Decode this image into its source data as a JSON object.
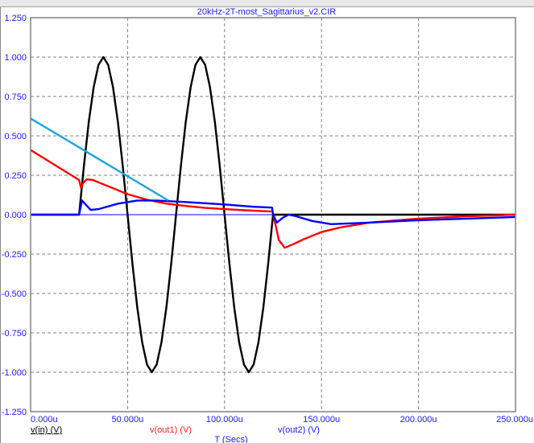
{
  "chart_data": {
    "type": "line",
    "title": "20kHz-2T-most_Sagittarius_v2.CIR",
    "xlabel": "T (Secs)",
    "ylabel": "",
    "xlim": [
      0,
      250
    ],
    "ylim": [
      -1.25,
      1.25
    ],
    "grid": true,
    "x_ticks": [
      "0.000u",
      "50.000u",
      "100.000u",
      "150.000u",
      "200.000u",
      "250.000u"
    ],
    "x_tick_values": [
      0,
      50,
      100,
      150,
      200,
      250
    ],
    "y_ticks": [
      "1.250",
      "1.000",
      "0.750",
      "0.500",
      "0.250",
      "0.000",
      "-0.250",
      "-0.500",
      "-0.750",
      "-1.000",
      "-1.250"
    ],
    "y_tick_values": [
      1.25,
      1,
      0.75,
      0.5,
      0.25,
      0,
      -0.25,
      -0.5,
      -0.75,
      -1,
      -1.25
    ],
    "legend_placement": "bottom",
    "series": [
      {
        "name": "v(in) (V)",
        "color": "#000000",
        "points": [
          [
            0,
            0
          ],
          [
            25,
            0
          ],
          [
            27.5,
            0.309
          ],
          [
            30,
            0.588
          ],
          [
            32.5,
            0.809
          ],
          [
            35,
            0.951
          ],
          [
            37.5,
            1
          ],
          [
            40,
            0.951
          ],
          [
            42.5,
            0.809
          ],
          [
            45,
            0.588
          ],
          [
            47.5,
            0.309
          ],
          [
            50,
            0
          ],
          [
            52.5,
            -0.309
          ],
          [
            55,
            -0.588
          ],
          [
            57.5,
            -0.809
          ],
          [
            60,
            -0.951
          ],
          [
            62.5,
            -1
          ],
          [
            65,
            -0.951
          ],
          [
            67.5,
            -0.809
          ],
          [
            70,
            -0.588
          ],
          [
            72.5,
            -0.309
          ],
          [
            75,
            0
          ],
          [
            77.5,
            0.309
          ],
          [
            80,
            0.588
          ],
          [
            82.5,
            0.809
          ],
          [
            85,
            0.951
          ],
          [
            87.5,
            1
          ],
          [
            90,
            0.951
          ],
          [
            92.5,
            0.809
          ],
          [
            95,
            0.588
          ],
          [
            97.5,
            0.309
          ],
          [
            100,
            0
          ],
          [
            102.5,
            -0.309
          ],
          [
            105,
            -0.588
          ],
          [
            107.5,
            -0.809
          ],
          [
            110,
            -0.951
          ],
          [
            112.5,
            -1
          ],
          [
            115,
            -0.951
          ],
          [
            117.5,
            -0.809
          ],
          [
            120,
            -0.588
          ],
          [
            122.5,
            -0.309
          ],
          [
            125,
            0
          ],
          [
            250,
            0
          ]
        ]
      },
      {
        "name": "v(out1) (V)",
        "color": "#ff0000",
        "points": [
          [
            0,
            0.41
          ],
          [
            25,
            0.22
          ],
          [
            26,
            0.17
          ],
          [
            27,
            0.2
          ],
          [
            29,
            0.225
          ],
          [
            32,
            0.22
          ],
          [
            40,
            0.18
          ],
          [
            50,
            0.13
          ],
          [
            60,
            0.095
          ],
          [
            70,
            0.07
          ],
          [
            80,
            0.055
          ],
          [
            90,
            0.043
          ],
          [
            100,
            0.035
          ],
          [
            110,
            0.028
          ],
          [
            124.8,
            0.02
          ],
          [
            126,
            -0.05
          ],
          [
            128,
            -0.16
          ],
          [
            131,
            -0.21
          ],
          [
            135,
            -0.19
          ],
          [
            140,
            -0.16
          ],
          [
            150,
            -0.11
          ],
          [
            160,
            -0.08
          ],
          [
            175,
            -0.05
          ],
          [
            200,
            -0.025
          ],
          [
            225,
            -0.01
          ],
          [
            250,
            0.0
          ]
        ]
      },
      {
        "name": "v(out2) (V)",
        "color": "#0000ff",
        "points": [
          [
            0,
            0
          ],
          [
            25,
            0
          ],
          [
            26.5,
            0.09
          ],
          [
            28,
            0.07
          ],
          [
            31,
            0.03
          ],
          [
            35,
            0.035
          ],
          [
            45,
            0.07
          ],
          [
            55,
            0.09
          ],
          [
            65,
            0.09
          ],
          [
            80,
            0.08
          ],
          [
            100,
            0.065
          ],
          [
            115,
            0.05
          ],
          [
            124.5,
            0.045
          ],
          [
            125,
            0.0
          ],
          [
            127,
            -0.05
          ],
          [
            130,
            -0.02
          ],
          [
            133,
            0.0
          ],
          [
            137,
            -0.01
          ],
          [
            145,
            -0.04
          ],
          [
            155,
            -0.06
          ],
          [
            175,
            -0.05
          ],
          [
            200,
            -0.035
          ],
          [
            225,
            -0.025
          ],
          [
            250,
            -0.015
          ]
        ]
      },
      {
        "color": "#1aa3dd",
        "points": [
          [
            0,
            0.61
          ],
          [
            71,
            0.09
          ]
        ]
      }
    ]
  }
}
